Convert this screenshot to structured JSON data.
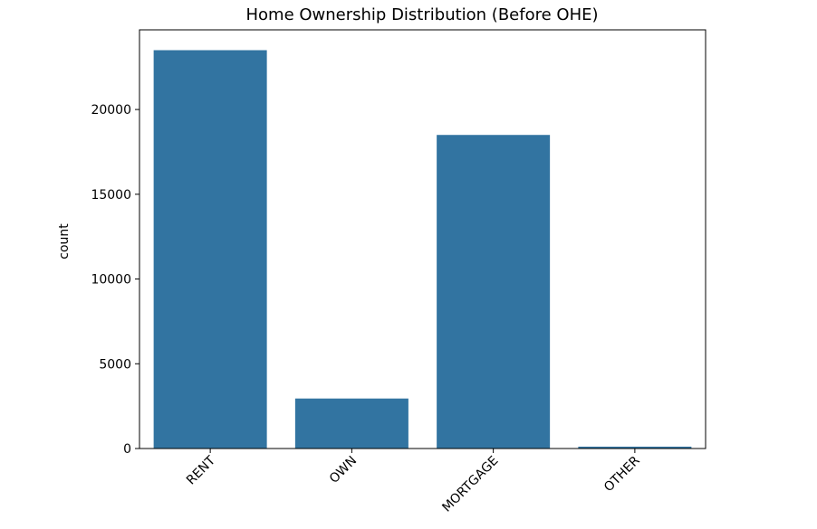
{
  "chart_data": {
    "type": "bar",
    "title": "Home Ownership Distribution (Before OHE)",
    "xlabel": "",
    "ylabel": "count",
    "categories": [
      "RENT",
      "OWN",
      "MORTGAGE",
      "OTHER"
    ],
    "values": [
      23500,
      2950,
      18500,
      110
    ],
    "ylim": [
      0,
      24700
    ],
    "yticks": [
      0,
      5000,
      10000,
      15000,
      20000
    ],
    "ytick_labels": [
      "0",
      "5000",
      "10000",
      "15000",
      "20000"
    ],
    "bar_color": "#3274a1",
    "grid": false,
    "legend": "none",
    "xtick_rotation_deg": 45
  }
}
